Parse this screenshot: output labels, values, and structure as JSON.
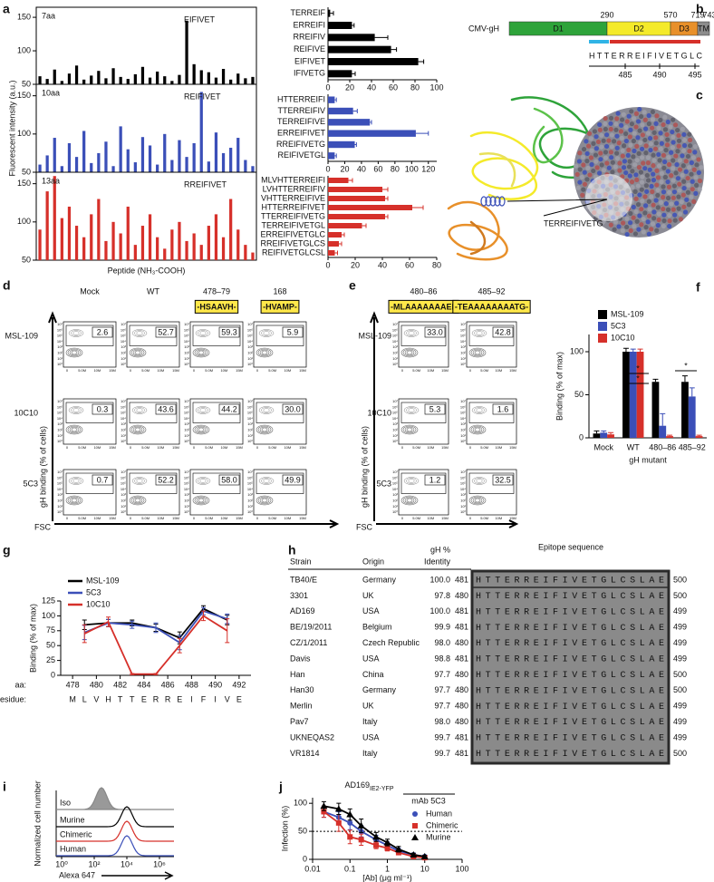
{
  "panel_labels": [
    "a",
    "b",
    "c",
    "d",
    "e",
    "f",
    "g",
    "h",
    "i",
    "j"
  ],
  "chart_data": [
    {
      "type": "bar",
      "annotations": [
        "7aa",
        "EIFIVET"
      ],
      "color": "#000000",
      "ylim": [
        50,
        165
      ],
      "yticks": [
        50,
        100,
        150
      ],
      "categories": [
        null,
        null,
        null,
        null,
        null,
        null,
        null,
        null,
        null,
        null,
        null,
        null,
        null,
        null,
        null,
        null,
        null,
        null,
        null,
        null,
        null,
        null,
        null,
        null,
        null,
        null,
        null,
        null,
        null,
        null
      ],
      "values": [
        62,
        58,
        72,
        55,
        66,
        78,
        57,
        63,
        70,
        59,
        74,
        61,
        58,
        65,
        76,
        60,
        69,
        62,
        55,
        64,
        145,
        80,
        71,
        68,
        60,
        73,
        57,
        66,
        59,
        61
      ]
    },
    {
      "type": "bar",
      "annotations": [
        "10aa",
        "REIFIVET"
      ],
      "y_label": "Fluorescent intensity (a.u.)",
      "color": "#3b4fb8",
      "ylim": [
        50,
        165
      ],
      "yticks": [
        50,
        100,
        150
      ],
      "categories": [
        null,
        null,
        null,
        null,
        null,
        null,
        null,
        null,
        null,
        null,
        null,
        null,
        null,
        null,
        null,
        null,
        null,
        null,
        null,
        null,
        null,
        null,
        null,
        null,
        null,
        null,
        null,
        null,
        null,
        null
      ],
      "values": [
        60,
        72,
        95,
        58,
        88,
        70,
        104,
        62,
        75,
        90,
        58,
        110,
        80,
        63,
        96,
        85,
        60,
        100,
        66,
        92,
        70,
        88,
        155,
        64,
        102,
        75,
        82,
        95,
        66,
        58
      ]
    },
    {
      "type": "bar",
      "annotations": [
        "13aa",
        "RREIFIVET"
      ],
      "x_label": "Peptide (NH₃-COOH)",
      "color": "#d6302a",
      "ylim": [
        50,
        165
      ],
      "yticks": [
        50,
        100,
        150
      ],
      "categories": [
        null,
        null,
        null,
        null,
        null,
        null,
        null,
        null,
        null,
        null,
        null,
        null,
        null,
        null,
        null,
        null,
        null,
        null,
        null,
        null,
        null,
        null,
        null,
        null,
        null,
        null,
        null,
        null,
        null,
        null
      ],
      "values": [
        90,
        140,
        160,
        105,
        120,
        95,
        80,
        110,
        130,
        75,
        100,
        85,
        120,
        70,
        95,
        110,
        80,
        65,
        90,
        100,
        75,
        85,
        70,
        95,
        110,
        80,
        130,
        90,
        70,
        60
      ]
    },
    {
      "type": "bar",
      "orientation": "horizontal",
      "color": "#000000",
      "xlim": [
        0,
        100
      ],
      "xticks": [
        0,
        20,
        40,
        60,
        80,
        100
      ],
      "categories": [
        "TERREIF",
        "ERREIFI",
        "RREIFIV",
        "REIFIVE",
        "EIFIVET",
        "IFIVETG"
      ],
      "values": [
        2,
        22,
        43,
        58,
        83,
        22
      ],
      "errors": [
        3,
        2,
        12,
        5,
        5,
        3
      ]
    },
    {
      "type": "bar",
      "orientation": "horizontal",
      "color": "#3b4fb8",
      "xlim": [
        0,
        130
      ],
      "xticks": [
        0,
        20,
        40,
        60,
        80,
        100,
        120
      ],
      "categories": [
        "HTTERREIFI",
        "TTERREIFIV",
        "TERREIFIVE",
        "ERREIFIVET",
        "RREIFIVETG",
        "REIFIVETGL"
      ],
      "values": [
        8,
        30,
        50,
        105,
        32,
        8
      ],
      "errors": [
        2,
        5,
        2,
        15,
        2,
        2
      ]
    },
    {
      "type": "bar",
      "orientation": "horizontal",
      "color": "#d6302a",
      "xlim": [
        0,
        80
      ],
      "xticks": [
        0,
        20,
        40,
        60,
        80
      ],
      "categories": [
        "MLVHTTERREIFI",
        "LVHTTERREIFIV",
        "VHTTERREIFIVE",
        "HTTERREIFIVET",
        "TTERREIFIVETG",
        "TERREIFIVETGL",
        "ERREIFIVETGLC",
        "RREIFIVETGLCS",
        "REIFIVETGLCSL"
      ],
      "values": [
        15,
        40,
        42,
        62,
        42,
        25,
        10,
        8,
        5
      ],
      "errors": [
        3,
        4,
        2,
        8,
        2,
        3,
        2,
        2,
        2
      ]
    },
    {
      "type": "bar",
      "categories": [
        "Mock",
        "WT",
        "480–86",
        "485–92"
      ],
      "legend": "upper left",
      "ylim": [
        0,
        120
      ],
      "yticks": [
        0,
        50,
        100
      ],
      "y_label": "Binding (% of max)",
      "x_label": "gH mutant",
      "annotations": [
        "*",
        "*",
        "*"
      ],
      "series": [
        {
          "name": "MSL-109",
          "color": "#000000",
          "values": [
            5,
            100,
            65,
            65
          ],
          "errors": [
            3,
            4,
            3,
            7
          ]
        },
        {
          "name": "5C3",
          "color": "#3b4fb8",
          "values": [
            6,
            100,
            14,
            48
          ],
          "errors": [
            2,
            3,
            14,
            10
          ]
        },
        {
          "name": "10C10",
          "color": "#d6302a",
          "values": [
            4,
            100,
            2,
            2
          ],
          "errors": [
            2,
            3,
            1,
            1
          ]
        }
      ]
    },
    {
      "type": "line",
      "x": [
        479,
        481,
        483,
        485,
        487,
        489,
        491
      ],
      "xlim": [
        477,
        493
      ],
      "xticks": [
        478,
        480,
        482,
        484,
        486,
        488,
        490,
        492
      ],
      "ylim": [
        0,
        125
      ],
      "yticks": [
        0,
        25,
        50,
        75,
        100,
        125
      ],
      "legend": "upper left",
      "y_label": "Binding (% of max)",
      "aa_label": "aa:",
      "residue_label": "Residue:",
      "residues": [
        "M",
        "L",
        "V",
        "H",
        "T",
        "T",
        "E",
        "R",
        "R",
        "E",
        "I",
        "F",
        "I",
        "V",
        "E"
      ],
      "series": [
        {
          "name": "MSL-109",
          "color": "#000000",
          "values": [
            85,
            88,
            88,
            80,
            63,
            112,
            93
          ],
          "errors": [
            8,
            6,
            5,
            6,
            10,
            5,
            8
          ]
        },
        {
          "name": "5C3",
          "color": "#3b4fb8",
          "values": [
            72,
            88,
            85,
            80,
            55,
            108,
            95
          ],
          "errors": [
            12,
            6,
            6,
            8,
            12,
            6,
            8
          ]
        },
        {
          "name": "10C10",
          "color": "#d6302a",
          "values": [
            70,
            90,
            2,
            2,
            50,
            100,
            75
          ],
          "errors": [
            15,
            8,
            1,
            1,
            12,
            8,
            20
          ]
        }
      ]
    },
    {
      "type": "line",
      "xlog": true,
      "title": "AD169",
      "title_subscript": "IE2-YFP",
      "group_label": "mAb 5C3",
      "x": [
        0.02,
        0.05,
        0.1,
        0.2,
        0.5,
        1,
        2,
        5,
        10
      ],
      "xlim": [
        0.01,
        100
      ],
      "xticks": [
        0.01,
        0.1,
        1,
        10,
        100
      ],
      "ylim": [
        0,
        110
      ],
      "yticks": [
        0,
        50,
        100
      ],
      "reference_line": 50,
      "legend": "upper right",
      "y_label": "Infection (%)",
      "x_label": "[Ab] (μg ml⁻¹)",
      "series": [
        {
          "name": "Human",
          "color": "#3b4fb8",
          "marker": "circle",
          "values": [
            85,
            75,
            65,
            50,
            35,
            25,
            15,
            8,
            5
          ],
          "errors": [
            10,
            10,
            12,
            10,
            8,
            6,
            5,
            3,
            2
          ]
        },
        {
          "name": "Chimeric",
          "color": "#d6302a",
          "marker": "square",
          "values": [
            85,
            65,
            40,
            35,
            25,
            20,
            12,
            5,
            3
          ],
          "errors": [
            10,
            15,
            12,
            10,
            6,
            5,
            4,
            2,
            2
          ]
        },
        {
          "name": "Murine",
          "color": "#000000",
          "marker": "triangle",
          "values": [
            95,
            90,
            80,
            60,
            40,
            30,
            18,
            8,
            5
          ],
          "errors": [
            8,
            10,
            10,
            12,
            8,
            6,
            5,
            3,
            2
          ]
        }
      ]
    }
  ],
  "gh_diagram": {
    "protein": "CMV-gH",
    "domains": [
      "D1",
      "D2",
      "D3",
      "TM"
    ],
    "boundaries": [
      "290",
      "570",
      "719",
      "743"
    ],
    "sequence": "HTTERREIFIVETGLC",
    "positions": [
      "485",
      "490",
      "495"
    ]
  },
  "structure": {
    "label": "TERREIFIVETG"
  },
  "flow": {
    "axis_ticks": {
      "y": [
        "10⁰",
        "10¹",
        "10²",
        "10³",
        "10⁴",
        "10⁵",
        "10⁶",
        "10⁷"
      ],
      "x": [
        "0",
        "5.0M",
        "10M",
        "15M"
      ]
    },
    "y_label": "gH binding (% of cells)",
    "x_label": "FSC",
    "d": {
      "columns": [
        {
          "header": "Mock"
        },
        {
          "header": "WT"
        },
        {
          "header": "478–79",
          "mutation": "-HSAAVH-"
        },
        {
          "header": "168",
          "mutation": "-HVAMP-"
        }
      ],
      "rows": [
        "MSL-109",
        "10C10",
        "5C3"
      ],
      "gates": [
        [
          "2.6",
          "52.7",
          "59.3",
          "5.9"
        ],
        [
          "0.3",
          "43.6",
          "44.2",
          "30.0"
        ],
        [
          "0.7",
          "52.2",
          "58.0",
          "49.9"
        ]
      ]
    },
    "e": {
      "columns": [
        {
          "header": "480–86",
          "mutation": "-MLAAAAAAAEI-"
        },
        {
          "header": "485–92",
          "mutation": "-TEAAAAAAAATG-"
        }
      ],
      "rows": [
        "MSL-109",
        "10C10",
        "5C3"
      ],
      "gates": [
        [
          "33.0",
          "42.8"
        ],
        [
          "5.3",
          "1.6"
        ],
        [
          "1.2",
          "32.5"
        ]
      ]
    }
  },
  "table": {
    "headers": {
      "strain": "Strain",
      "origin": "Origin",
      "identity": [
        "gH %",
        "Identity"
      ],
      "epitope": "Epitope sequence"
    },
    "rows": [
      [
        "TB40/E",
        "Germany",
        "100.0",
        "481",
        "HTTERREIFIVETGLCSLAE",
        "500"
      ],
      [
        "3301",
        "UK",
        "97.8",
        "480",
        "HTTERREIFIVETGLCSLAE",
        "500"
      ],
      [
        "AD169",
        "USA",
        "100.0",
        "481",
        "HTTERREIFIVETGLCSLAE",
        "499"
      ],
      [
        "BE/19/2011",
        "Belgium",
        "99.9",
        "481",
        "HTTERREIFIVETGLCSLAE",
        "499"
      ],
      [
        "CZ/1/2011",
        "Czech Republic",
        "98.0",
        "480",
        "HTTERREIFIVETGLCSLAE",
        "499"
      ],
      [
        "Davis",
        "USA",
        "98.8",
        "481",
        "HTTERREIFIVETGLCSLAE",
        "499"
      ],
      [
        "Han",
        "China",
        "97.7",
        "480",
        "HTTERREIFIVETGLCSLAE",
        "500"
      ],
      [
        "Han30",
        "Germany",
        "97.7",
        "480",
        "HTTERREIFIVETGLCSLAE",
        "500"
      ],
      [
        "Merlin",
        "UK",
        "97.7",
        "480",
        "HTTERREIFIVETGLCSLAE",
        "499"
      ],
      [
        "Pav7",
        "Italy",
        "98.0",
        "480",
        "HTTERREIFIVETGLCSLAE",
        "499"
      ],
      [
        "UKNEQAS2",
        "USA",
        "99.7",
        "481",
        "HTTERREIFIVETGLCSLAE",
        "499"
      ],
      [
        "VR1814",
        "Italy",
        "99.7",
        "481",
        "HTTERREIFIVETGLCSLAE",
        "500"
      ]
    ]
  },
  "histograms": {
    "labels": [
      "Iso",
      "Murine",
      "Chimeric",
      "Human"
    ],
    "x_ticks": [
      "10⁰",
      "10²",
      "10⁴",
      "10⁶"
    ],
    "x_label": "Alexa 647",
    "y_label": "Normalized cell number"
  }
}
